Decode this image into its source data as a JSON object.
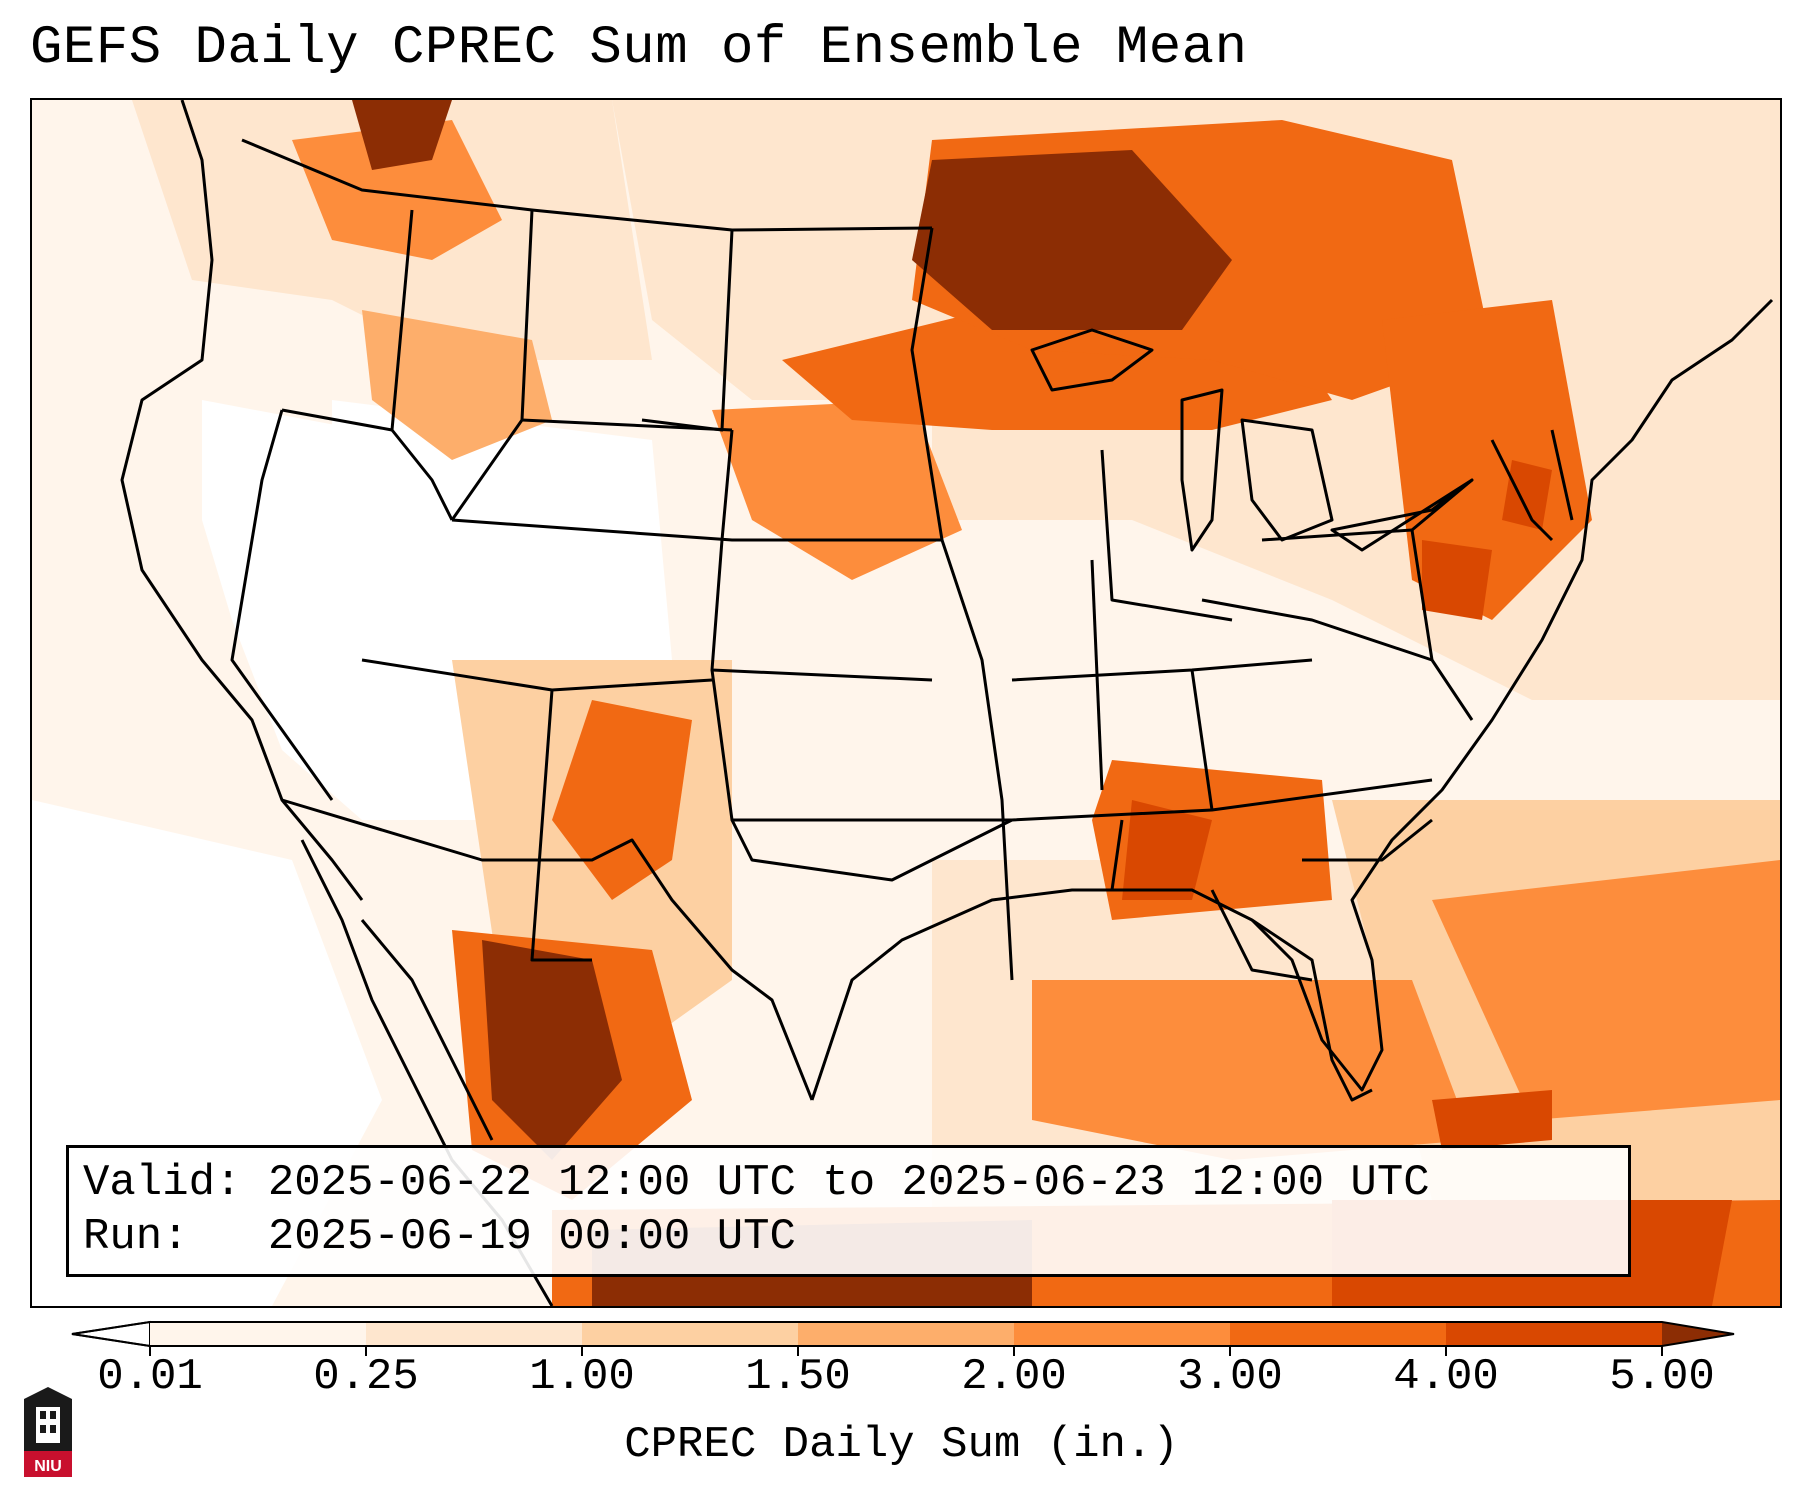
{
  "title": "GEFS Daily CPREC Sum of Ensemble Mean",
  "info": {
    "valid_label": "Valid:",
    "valid_value": "2025-06-22 12:00 UTC to 2025-06-23 12:00 UTC",
    "run_label": "Run:",
    "run_value": "2025-06-19 00:00 UTC"
  },
  "colorbar": {
    "label": "CPREC Daily Sum (in.)",
    "ticks": [
      "0.01",
      "0.25",
      "1.00",
      "1.50",
      "2.00",
      "3.00",
      "4.00",
      "5.00"
    ],
    "colors": [
      "#fff5eb",
      "#fee6ce",
      "#fdd0a2",
      "#fdae6b",
      "#fd8d3c",
      "#f16913",
      "#d94801",
      "#8c2d04"
    ]
  },
  "logo": {
    "text": "NIU",
    "colors": {
      "red": "#c8102e",
      "black": "#1a1a1a"
    }
  }
}
